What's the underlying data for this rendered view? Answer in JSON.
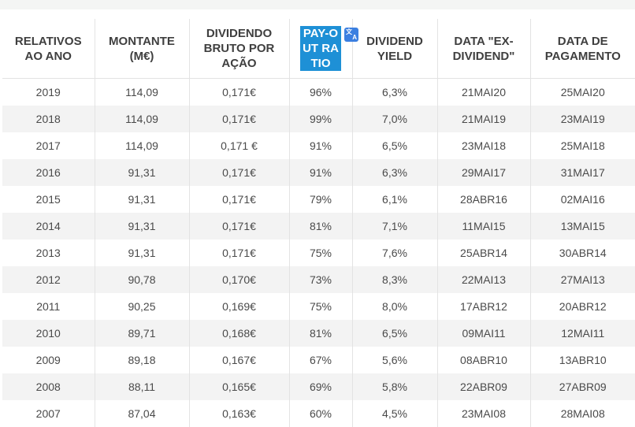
{
  "table": {
    "headers": {
      "year": "RELATIVOS AO ANO",
      "amount": "MONTANTE (M€)",
      "dividend_per_share": "DIVIDENDO BRUTO POR AÇÃO",
      "payout_ratio": "PAY-OUT RATIO",
      "dividend_yield": "DIVIDEND YIELD",
      "ex_dividend_date": "DATA \"EX-DIVIDEND\"",
      "payment_date": "DATA DE PAGAMENTO"
    },
    "translate_icon": "translate-icon",
    "rows": [
      {
        "year": "2019",
        "amount": "114,09",
        "dps": "0,171€",
        "payout": "96%",
        "yield": "6,3%",
        "ex": "21MAI20",
        "pay": "25MAI20"
      },
      {
        "year": "2018",
        "amount": "114,09",
        "dps": "0,171€",
        "payout": "99%",
        "yield": "7,0%",
        "ex": "21MAI19",
        "pay": "23MAI19"
      },
      {
        "year": "2017",
        "amount": "114,09",
        "dps": "0,171 €",
        "payout": "91%",
        "yield": "6,5%",
        "ex": "23MAI18",
        "pay": "25MAI18"
      },
      {
        "year": "2016",
        "amount": "91,31",
        "dps": "0,171€",
        "payout": "91%",
        "yield": "6,3%",
        "ex": "29MAI17",
        "pay": "31MAI17"
      },
      {
        "year": "2015",
        "amount": "91,31",
        "dps": "0,171€",
        "payout": "79%",
        "yield": "6,1%",
        "ex": "28ABR16",
        "pay": "02MAI16"
      },
      {
        "year": "2014",
        "amount": "91,31",
        "dps": "0,171€",
        "payout": "81%",
        "yield": "7,1%",
        "ex": "11MAI15",
        "pay": "13MAI15"
      },
      {
        "year": "2013",
        "amount": "91,31",
        "dps": "0,171€",
        "payout": "75%",
        "yield": "7,6%",
        "ex": "25ABR14",
        "pay": "30ABR14"
      },
      {
        "year": "2012",
        "amount": "90,78",
        "dps": "0,170€",
        "payout": "73%",
        "yield": "8,3%",
        "ex": "22MAI13",
        "pay": "27MAI13"
      },
      {
        "year": "2011",
        "amount": "90,25",
        "dps": "0,169€",
        "payout": "75%",
        "yield": "8,0%",
        "ex": "17ABR12",
        "pay": "20ABR12"
      },
      {
        "year": "2010",
        "amount": "89,71",
        "dps": "0,168€",
        "payout": "81%",
        "yield": "6,5%",
        "ex": "09MAI11",
        "pay": "12MAI11"
      },
      {
        "year": "2009",
        "amount": "89,18",
        "dps": "0,167€",
        "payout": "67%",
        "yield": "5,6%",
        "ex": "08ABR10",
        "pay": "13ABR10"
      },
      {
        "year": "2008",
        "amount": "88,11",
        "dps": "0,165€",
        "payout": "69%",
        "yield": "5,8%",
        "ex": "22ABR09",
        "pay": "27ABR09"
      },
      {
        "year": "2007",
        "amount": "87,04",
        "dps": "0,163€",
        "payout": "60%",
        "yield": "4,5%",
        "ex": "23MAI08",
        "pay": "28MAI08"
      }
    ]
  },
  "colors": {
    "highlight": "#1e90d6",
    "zebra": "#f3f3f3",
    "text": "#4a4a4a"
  }
}
